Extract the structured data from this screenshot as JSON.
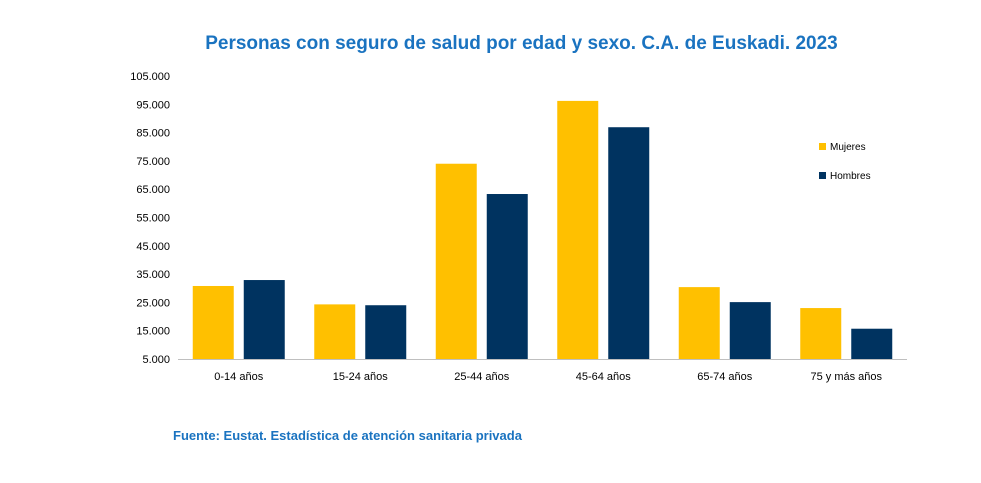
{
  "chart_data": {
    "type": "bar",
    "title": "Personas con seguro de salud por edad y sexo. C.A. de Euskadi. 2023",
    "source": "Fuente: Eustat. Estadística de atención sanitaria privada",
    "categories": [
      "0-14 años",
      "15-24 años",
      "25-44 años",
      "45-64 años",
      "65-74 años",
      "75 y más años"
    ],
    "series": [
      {
        "name": "Mujeres",
        "color": "#ffc000",
        "values": [
          30800,
          24300,
          74000,
          96200,
          30400,
          23000
        ]
      },
      {
        "name": "Hombres",
        "color": "#003360",
        "values": [
          32900,
          24000,
          63300,
          86900,
          25100,
          15700
        ]
      }
    ],
    "ylim": [
      5000,
      105000
    ],
    "yticks": [
      5000,
      15000,
      25000,
      35000,
      45000,
      55000,
      65000,
      75000,
      85000,
      95000,
      105000
    ],
    "ytick_labels": [
      "5.000",
      "15.000",
      "25.000",
      "35.000",
      "45.000",
      "55.000",
      "65.000",
      "75.000",
      "85.000",
      "95.000",
      "105.000"
    ],
    "xlabel": "",
    "ylabel": "",
    "grid": false,
    "legend_position": "right"
  }
}
